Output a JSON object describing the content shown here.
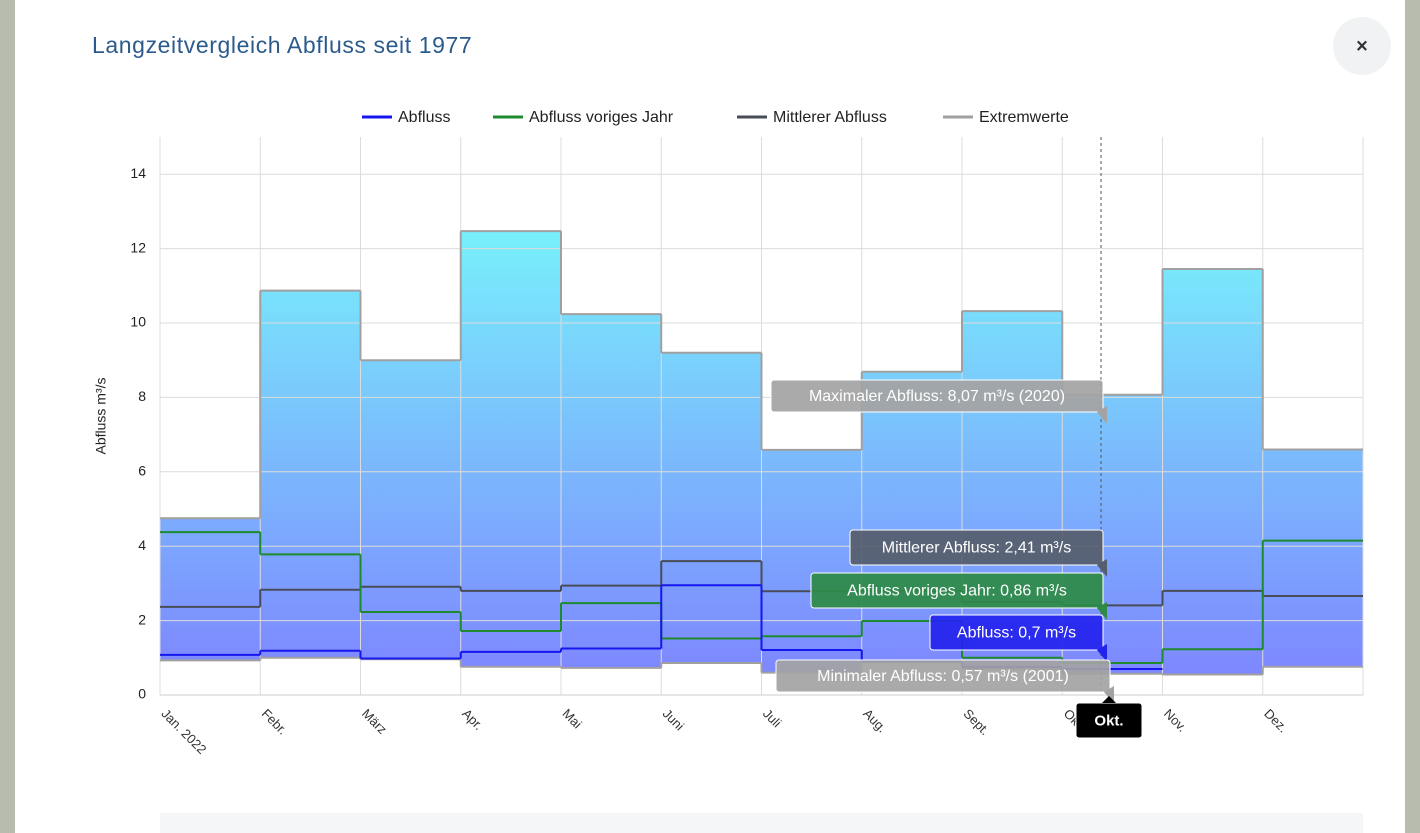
{
  "close_button": "×",
  "chart_data": {
    "type": "step-line",
    "title": "Langzeitvergleich Abfluss seit 1977",
    "ylabel": "Abfluss m³/s",
    "categories": [
      "Jan. 2022",
      "Febr.",
      "März",
      "Apr.",
      "Mai",
      "Juni",
      "Juli",
      "Aug.",
      "Sept.",
      "Okt.",
      "Nov.",
      "Dez."
    ],
    "ylim": [
      0,
      15
    ],
    "yticks": [
      0,
      2,
      4,
      6,
      8,
      10,
      12,
      14
    ],
    "grid": true,
    "extremes": {
      "name": "Extremwerte",
      "color": "#a0a0a0",
      "max": [
        4.75,
        10.87,
        9.0,
        12.47,
        10.24,
        9.2,
        6.59,
        8.69,
        10.32,
        8.07,
        11.45,
        6.6
      ],
      "min": [
        0.93,
        1.0,
        0.96,
        0.76,
        0.73,
        0.86,
        0.6,
        0.9,
        0.7,
        0.57,
        0.55,
        0.76
      ]
    },
    "series": [
      {
        "name": "Abfluss",
        "color": "#1616ee",
        "values": [
          1.08,
          1.19,
          0.98,
          1.16,
          1.25,
          2.95,
          1.21,
          0.9,
          0.75,
          0.7,
          null,
          null
        ]
      },
      {
        "name": "Abfluss voriges Jahr",
        "color": "#1e8a2e",
        "values": [
          4.38,
          3.78,
          2.23,
          1.72,
          2.47,
          1.52,
          1.58,
          1.99,
          1.0,
          0.86,
          1.23,
          4.15
        ]
      },
      {
        "name": "Mittlerer Abfluss",
        "color": "#474c57",
        "values": [
          2.37,
          2.83,
          2.91,
          2.8,
          2.94,
          3.6,
          2.79,
          2.8,
          2.5,
          2.41,
          2.8,
          2.66
        ]
      }
    ],
    "annotations": [
      {
        "text": "Maximaler Abfluss: 8,07 m³/s (2020)",
        "color": "#a3a3a3"
      },
      {
        "text": "Mittlerer Abfluss: 2,41 m³/s",
        "color": "#565d6b"
      },
      {
        "text": "Abfluss voriges Jahr: 0,86 m³/s",
        "color": "#2e8b47"
      },
      {
        "text": "Abfluss: 0,7 m³/s",
        "color": "#2323ee"
      },
      {
        "text": "Minimaler Abfluss: 0,57 m³/s (2001)",
        "color": "#a3a3a3"
      },
      {
        "text": "Okt.",
        "color": "#000000"
      }
    ]
  }
}
